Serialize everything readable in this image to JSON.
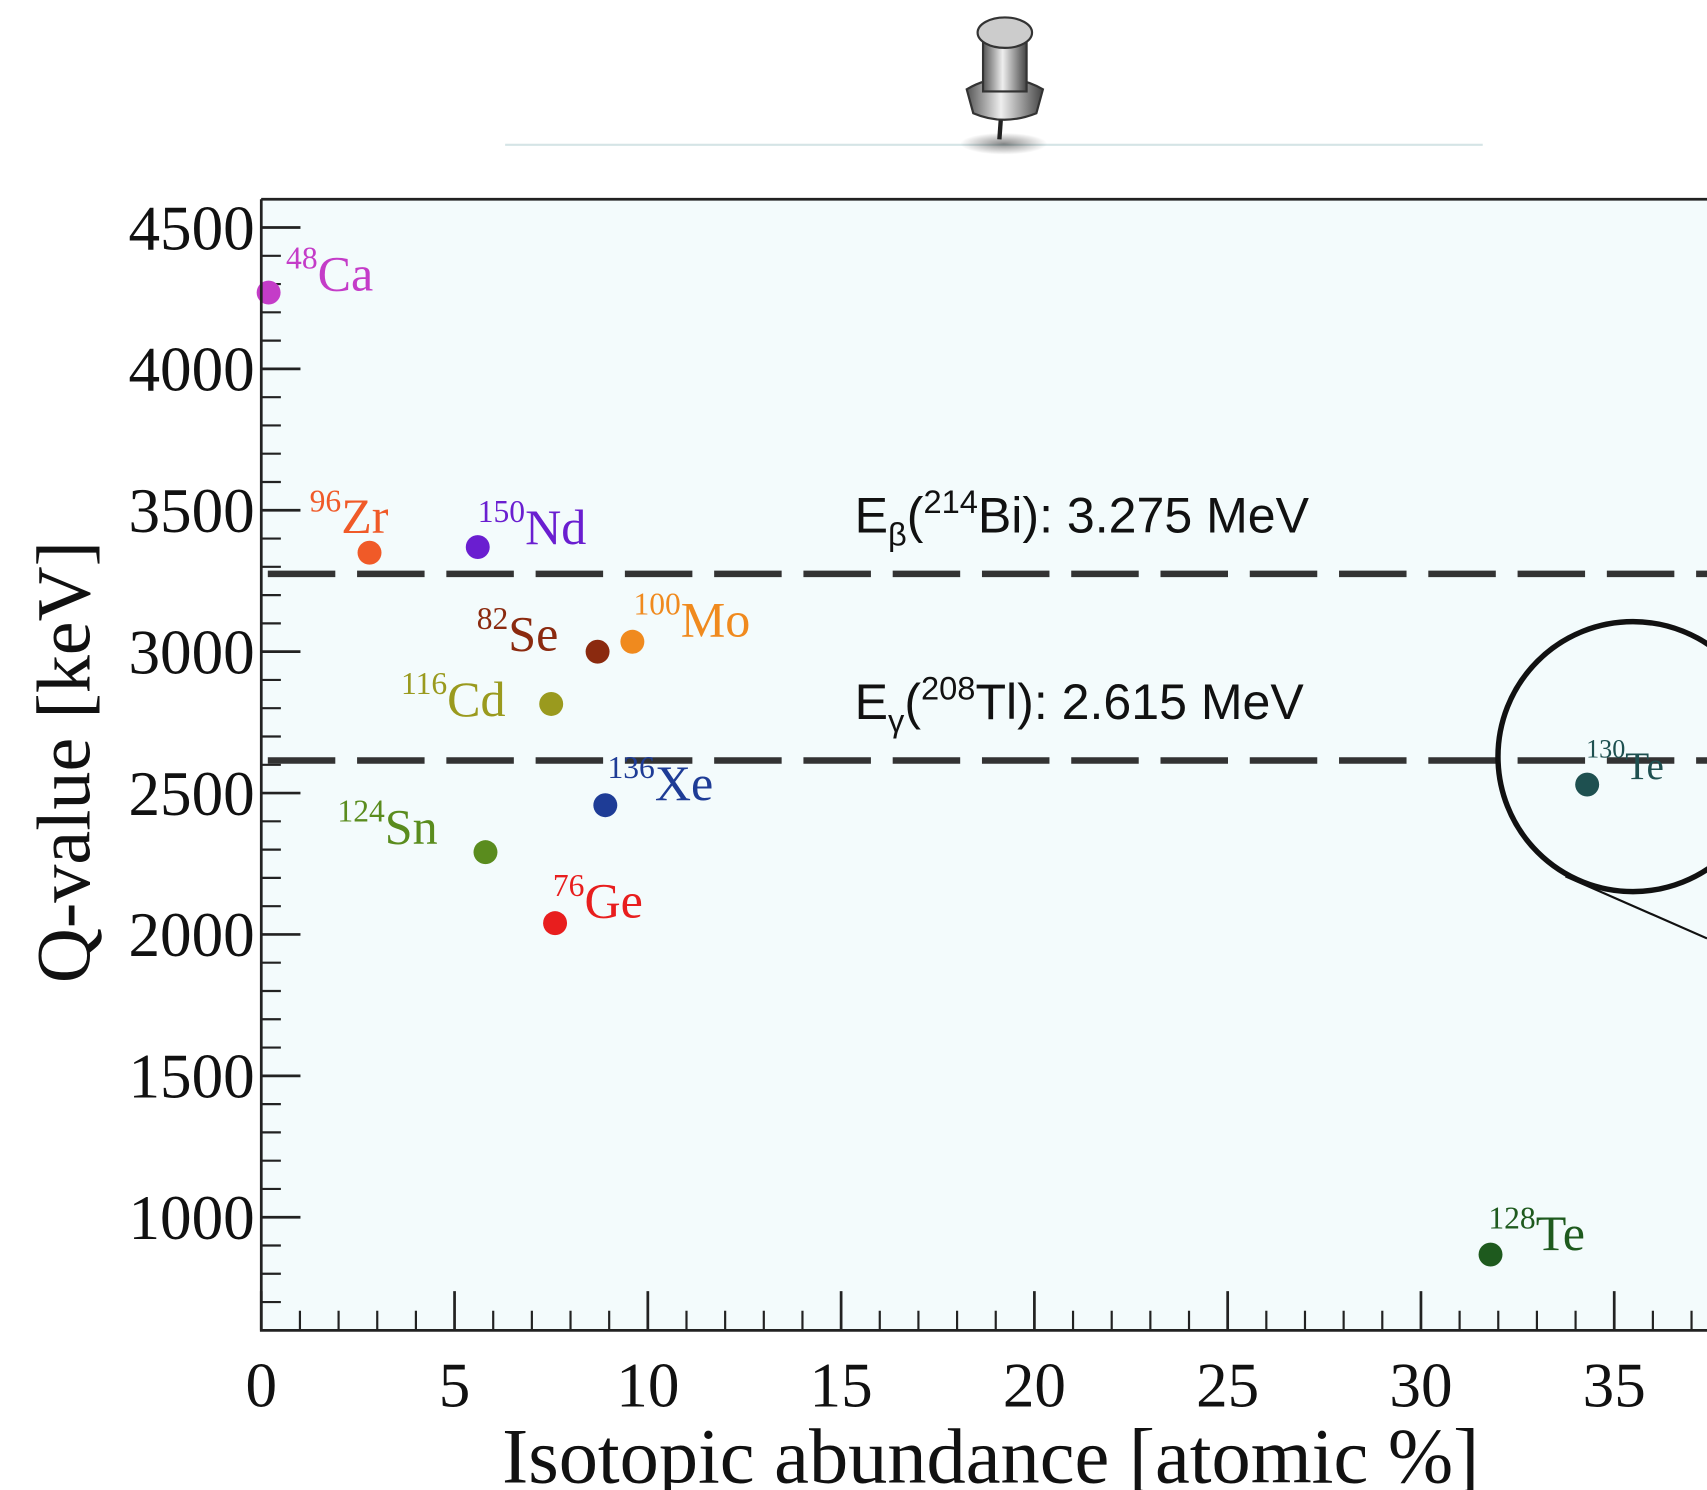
{
  "chart_data": {
    "type": "scatter",
    "x_label": "Isotopic abundance [atomic %]",
    "y_label": "Q-value [keV]",
    "xlim": [
      0,
      37.4
    ],
    "ylim": [
      600,
      4600
    ],
    "xticks": [
      0,
      5,
      10,
      15,
      20,
      25,
      30,
      35
    ],
    "yticks": [
      1000,
      1500,
      2000,
      2500,
      3000,
      3500,
      4000,
      4500
    ],
    "xminorticks": [
      1,
      2,
      3,
      4,
      6,
      7,
      8,
      9,
      11,
      12,
      13,
      14,
      16,
      17,
      18,
      19,
      21,
      22,
      23,
      24,
      26,
      27,
      28,
      29,
      31,
      32,
      33,
      34,
      36,
      37
    ],
    "yminorticks": [
      700,
      800,
      900,
      1100,
      1200,
      1300,
      1400,
      1600,
      1700,
      1800,
      1900,
      2100,
      2200,
      2300,
      2400,
      2600,
      2700,
      2800,
      2900,
      3100,
      3200,
      3300,
      3400,
      3600,
      3700,
      3800,
      3900,
      4100,
      4200,
      4300,
      4400,
      4600
    ],
    "series": [
      {
        "name": "Ca",
        "mass": "48",
        "color": "#c43cc8",
        "x": [
          0.19
        ],
        "values": [
          4270
        ]
      },
      {
        "name": "Zr",
        "mass": "96",
        "color": "#f05a28",
        "x": [
          2.8
        ],
        "values": [
          3350
        ]
      },
      {
        "name": "Nd",
        "mass": "150",
        "color": "#6a1ed0",
        "x": [
          5.6
        ],
        "values": [
          3370
        ]
      },
      {
        "name": "Se",
        "mass": "82",
        "color": "#8b2a0f",
        "x": [
          8.7
        ],
        "values": [
          3000
        ]
      },
      {
        "name": "Mo",
        "mass": "100",
        "color": "#f08a1e",
        "x": [
          9.6
        ],
        "values": [
          3035
        ]
      },
      {
        "name": "Cd",
        "mass": "116",
        "color": "#9a9a1e",
        "x": [
          7.5
        ],
        "values": [
          2815
        ]
      },
      {
        "name": "Xe",
        "mass": "136",
        "color": "#1e3c96",
        "x": [
          8.9
        ],
        "values": [
          2457
        ]
      },
      {
        "name": "Sn",
        "mass": "124",
        "color": "#5a8c1e",
        "x": [
          5.8
        ],
        "values": [
          2291
        ]
      },
      {
        "name": "Ge",
        "mass": "76",
        "color": "#e81e1e",
        "x": [
          7.6
        ],
        "values": [
          2040
        ]
      },
      {
        "name": "Te",
        "mass": "128",
        "color": "#1e5a1e",
        "x": [
          31.8
        ],
        "values": [
          868
        ]
      },
      {
        "name": "Te",
        "mass": "130",
        "color": "#1e5050",
        "x": [
          34.3
        ],
        "values": [
          2530
        ]
      }
    ],
    "reference_lines": [
      {
        "value": 3275,
        "label_parts": [
          "E",
          "β",
          "(",
          "214",
          "Bi): 3.275 MeV"
        ]
      },
      {
        "value": 2615,
        "label_parts": [
          "E",
          "γ",
          "(",
          "208",
          "Tl): 2.615 MeV"
        ]
      }
    ]
  }
}
